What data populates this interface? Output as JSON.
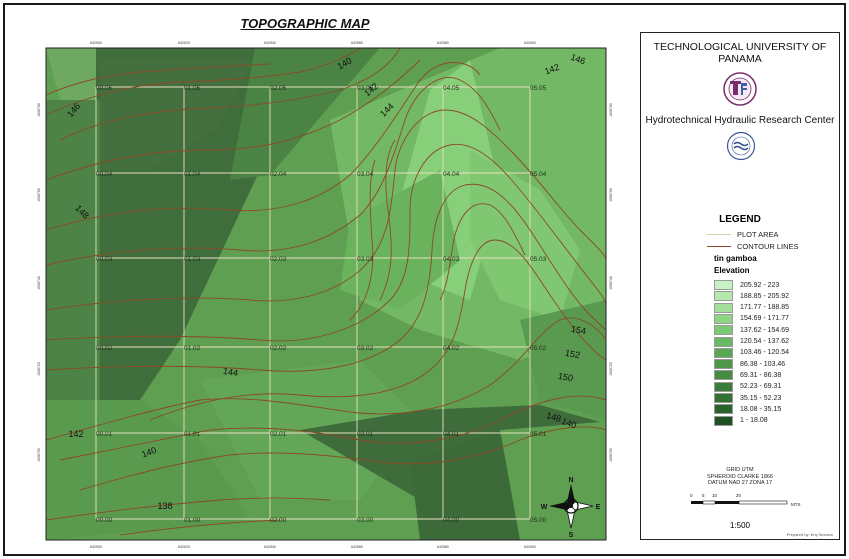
{
  "title": "TOPOGRAPHIC MAP",
  "colors": {
    "frame": "#1a1a1a",
    "contour": "#8b4a25",
    "grid": "#e8e0c0",
    "ramp": [
      "#c9f2c4",
      "#b4e8ad",
      "#a2df98",
      "#8fd585",
      "#7cc873",
      "#6ab863",
      "#5aa755",
      "#4f984b",
      "#458b42",
      "#3c7c3a",
      "#337032",
      "#2a622b",
      "#1f5222"
    ]
  },
  "grid": {
    "top_easting_labels": [
      "642500",
      "642520",
      "642540",
      "642560",
      "642580",
      "642600"
    ],
    "bottom_easting_labels": [
      "642500",
      "642520",
      "642540",
      "642560",
      "642580",
      "642600"
    ],
    "left_northing_labels": [
      "1006700",
      "1006720",
      "1006740",
      "1006760",
      "1006780"
    ],
    "right_northing_labels": [
      "1006700",
      "1006720",
      "1006740",
      "1006760",
      "1006780"
    ],
    "cell_labels": [
      [
        "00.05",
        "01.05",
        "02.05",
        "03.05",
        "04.05",
        "05.05"
      ],
      [
        "00.04",
        "01.04",
        "02.04",
        "03.04",
        "04.04",
        "05.04"
      ],
      [
        "00.03",
        "01.03",
        "02.03",
        "03.03",
        "04.03",
        "05.03"
      ],
      [
        "00.02",
        "01.02",
        "02.02",
        "03.02",
        "04.02",
        "05.02"
      ],
      [
        "00.01",
        "01.01",
        "02.01",
        "03.01",
        "04.01",
        "05.01"
      ],
      [
        "00.00",
        "01.00",
        "02.00",
        "03.00",
        "04.00",
        "05.00"
      ]
    ]
  },
  "contour_labels": [
    "140",
    "142",
    "142",
    "144",
    "146",
    "148",
    "144",
    "146",
    "148",
    "150",
    "152",
    "154",
    "142",
    "140",
    "138",
    "140"
  ],
  "north_arrow": {
    "n": "N",
    "s": "S",
    "e": "E",
    "w": "W"
  },
  "legend": {
    "university": "TECHNOLOGICAL UNIVERSITY OF PANAMA",
    "center": "Hydrotechnical Hydraulic Research Center",
    "title": "LEGEND",
    "plot_area": "PLOT AREA",
    "contour_lines": "CONTOUR LINES",
    "layer": "tin gamboa",
    "field": "Elevation",
    "classes": [
      "205.92 - 223",
      "188.85 - 205.92",
      "171.77 - 188.85",
      "154.69 - 171.77",
      "137.62 - 154.69",
      "120.54 - 137.62",
      "103.46 - 120.54",
      "86.38 - 103.46",
      "69.31 - 86.38",
      "52.23 - 69.31",
      "35.15 - 52.23",
      "18.08 - 35.15",
      "1 - 18.08"
    ],
    "grid_info": [
      "GRID UTM",
      "SPHEROID CLARKE 1866",
      "DATUM NAD 27 ZONA 17"
    ],
    "scale_ticks": [
      "0",
      "5",
      "10",
      "20"
    ],
    "scale_unit": "MTS",
    "scale": "1:500",
    "prepared_by": "Prepared by: Eny Serrano"
  }
}
